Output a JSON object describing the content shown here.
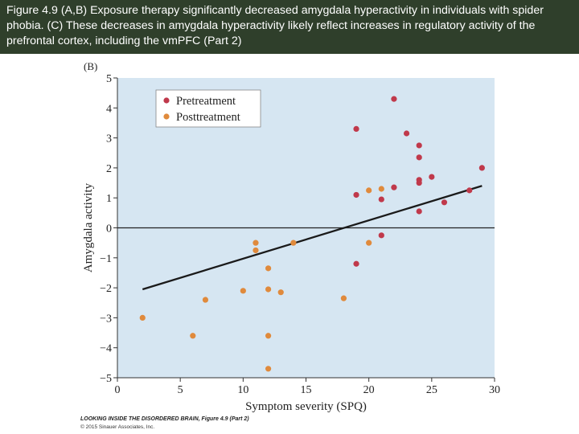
{
  "caption": "Figure 4.9 (A,B) Exposure therapy significantly decreased amygdala hyperactivity in individuals with spider phobia. (C) These decreases in amygdala hyperactivity likely reflect increases in regulatory activity of the prefrontal cortex, including the vmPFC (Part 2)",
  "credit": {
    "book": "LOOKING INSIDE THE DISORDERED BRAIN",
    "figure": ", Figure 4.9 (Part 2)",
    "copyright": "© 2015 Sinauer Associates, Inc."
  },
  "chart_data": {
    "type": "scatter",
    "panel_label": "(B)",
    "xlabel": "Symptom severity (SPQ)",
    "ylabel": "Amygdala activity",
    "xlim": [
      0,
      30
    ],
    "ylim": [
      -5,
      5
    ],
    "x_ticks": [
      0,
      5,
      10,
      15,
      20,
      25,
      30
    ],
    "y_ticks": [
      5,
      4,
      3,
      2,
      1,
      0,
      -1,
      -2,
      -3,
      -4,
      -5
    ],
    "y_tick_labels": [
      "5",
      "4",
      "3",
      "2",
      "1",
      "0",
      "−1",
      "−2",
      "−3",
      "−4",
      "−5"
    ],
    "grid": false,
    "zero_line": true,
    "legend_position": "top-left",
    "plot_background": "#d6e6f2",
    "series": [
      {
        "name": "Pretreatment",
        "color": "#c0394b",
        "points": [
          [
            19,
            3.3
          ],
          [
            22,
            4.3
          ],
          [
            23,
            3.15
          ],
          [
            24,
            2.75
          ],
          [
            24,
            2.35
          ],
          [
            19,
            1.1
          ],
          [
            21,
            0.95
          ],
          [
            22,
            1.35
          ],
          [
            24,
            1.6
          ],
          [
            24,
            1.5
          ],
          [
            25,
            1.7
          ],
          [
            24,
            0.55
          ],
          [
            26,
            0.85
          ],
          [
            28,
            1.25
          ],
          [
            29,
            2.0
          ],
          [
            21,
            -0.25
          ],
          [
            19,
            -1.2
          ]
        ]
      },
      {
        "name": "Posttreatment",
        "color": "#e08a3c",
        "points": [
          [
            20,
            1.25
          ],
          [
            21,
            1.3
          ],
          [
            20,
            -0.5
          ],
          [
            14,
            -0.5
          ],
          [
            11,
            -0.5
          ],
          [
            11,
            -0.75
          ],
          [
            12,
            -1.35
          ],
          [
            12,
            -2.05
          ],
          [
            13,
            -2.15
          ],
          [
            10,
            -2.1
          ],
          [
            7,
            -2.4
          ],
          [
            18,
            -2.35
          ],
          [
            2,
            -3.0
          ],
          [
            6,
            -3.6
          ],
          [
            12,
            -3.6
          ],
          [
            12,
            -4.7
          ]
        ]
      }
    ],
    "regression_line": {
      "x": [
        2,
        29
      ],
      "y": [
        -2.05,
        1.4
      ],
      "color": "#1a1a1a"
    }
  }
}
